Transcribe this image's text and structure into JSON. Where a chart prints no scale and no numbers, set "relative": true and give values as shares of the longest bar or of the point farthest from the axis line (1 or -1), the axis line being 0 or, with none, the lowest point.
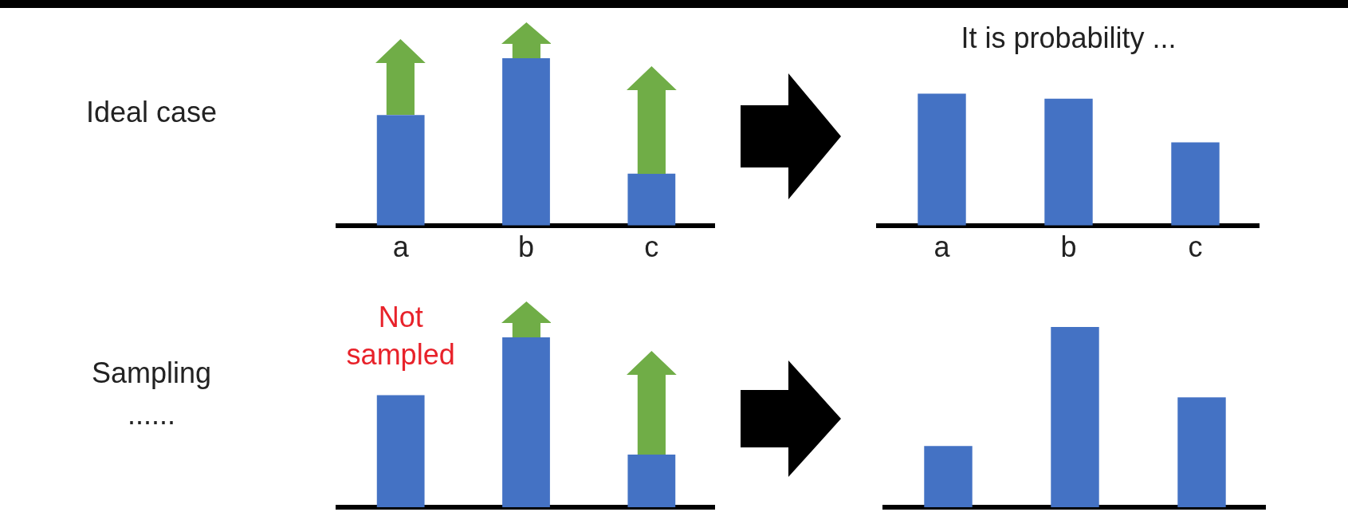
{
  "chart_data": [
    {
      "type": "bar",
      "ylabel": "Ideal case",
      "categories": [
        "a",
        "b",
        "c"
      ],
      "values": [
        0.66,
        1,
        0.31
      ],
      "color": "#4472c4",
      "relative": true,
      "legend": false,
      "grid": false
    },
    {
      "type": "bar",
      "title": "It is probability ...",
      "categories": [
        "a",
        "b",
        "c"
      ],
      "values": [
        1,
        0.96,
        0.63
      ],
      "color": "#4472c4",
      "relative": true,
      "legend": false,
      "grid": false
    },
    {
      "type": "bar",
      "ylabel": "Sampling ......",
      "annotations": [
        "Not sampled"
      ],
      "categories": [
        null,
        null,
        null
      ],
      "values": [
        0.66,
        1,
        0.31
      ],
      "color": "#4472c4",
      "relative": true,
      "legend": false,
      "grid": false
    },
    {
      "type": "bar",
      "categories": [
        null,
        null,
        null
      ],
      "values": [
        0.34,
        1,
        0.61
      ],
      "color": "#4472c4",
      "relative": true,
      "legend": false,
      "grid": false
    }
  ]
}
